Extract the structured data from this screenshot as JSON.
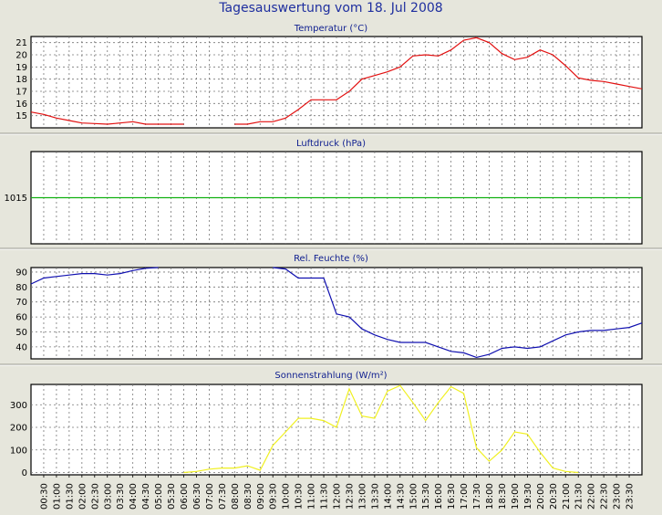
{
  "page": {
    "title": "Tagesauswertung vom 18. Jul 2008"
  },
  "colors": {
    "background": "#e6e6dc",
    "plot_background": "#ffffff",
    "title": "#1f2f9f",
    "temperature": "#e21010",
    "pressure": "#10b010",
    "humidity": "#1010b0",
    "radiation": "#f0f020"
  },
  "chart_data": [
    {
      "type": "line",
      "title": "Temperatur (°C)",
      "ylim": [
        14,
        21.5
      ],
      "yticks": [
        "21",
        "20",
        "19",
        "18",
        "17",
        "16",
        "15"
      ],
      "yticks_values": [
        21,
        20,
        19,
        18,
        17,
        16,
        15
      ],
      "grid": true,
      "x": [
        "00:00",
        "00:30",
        "01:00",
        "01:30",
        "02:00",
        "02:30",
        "03:00",
        "03:30",
        "04:00",
        "04:30",
        "05:00",
        "05:30",
        "06:00",
        "06:30",
        "07:00",
        "07:30",
        "08:00",
        "08:30",
        "09:00",
        "09:30",
        "10:00",
        "10:30",
        "11:00",
        "11:30",
        "12:00",
        "12:30",
        "13:00",
        "13:30",
        "14:00",
        "14:30",
        "15:00",
        "15:30",
        "16:00",
        "16:30",
        "17:00",
        "17:30",
        "18:00",
        "18:30",
        "19:00",
        "19:30",
        "20:00",
        "20:30",
        "21:00",
        "21:30",
        "22:00",
        "22:30",
        "23:00",
        "23:30",
        "24:00"
      ],
      "series": [
        {
          "values": [
            15.3,
            15.1,
            14.8,
            14.6,
            14.4,
            14.35,
            14.3,
            14.4,
            14.5,
            14.3,
            14.3,
            14.3,
            14.3,
            null,
            null,
            null,
            14.3,
            14.3,
            14.5,
            14.5,
            14.8,
            15.5,
            16.3,
            16.3,
            16.3,
            17.0,
            18.0,
            18.3,
            18.6,
            19.0,
            19.9,
            20.0,
            19.9,
            20.4,
            21.2,
            21.4,
            21.0,
            20.1,
            19.6,
            19.8,
            20.4,
            20.0,
            19.1,
            18.1,
            17.9,
            17.8,
            17.6,
            17.4,
            17.2
          ]
        }
      ]
    },
    {
      "type": "line",
      "title": "Luftdruck (hPa)",
      "ylim": [
        1010,
        1020
      ],
      "yticks": [
        "1015"
      ],
      "yticks_values": [
        1015
      ],
      "grid": true,
      "x": [
        "00:00",
        "24:00"
      ],
      "series": [
        {
          "values": [
            1015,
            1015
          ]
        }
      ]
    },
    {
      "type": "line",
      "title": "Rel. Feuchte (%)",
      "ylim": [
        32,
        93
      ],
      "yticks": [
        "90",
        "80",
        "70",
        "60",
        "50",
        "40"
      ],
      "yticks_values": [
        90,
        80,
        70,
        60,
        50,
        40
      ],
      "grid": true,
      "x": [
        "00:00",
        "00:30",
        "01:00",
        "01:30",
        "02:00",
        "02:30",
        "03:00",
        "03:30",
        "04:00",
        "04:30",
        "05:00",
        "05:30",
        "06:00",
        "06:30",
        "07:00",
        "07:30",
        "08:00",
        "08:30",
        "09:00",
        "09:30",
        "10:00",
        "10:30",
        "11:00",
        "11:30",
        "12:00",
        "12:30",
        "13:00",
        "13:30",
        "14:00",
        "14:30",
        "15:00",
        "15:30",
        "16:00",
        "16:30",
        "17:00",
        "17:30",
        "18:00",
        "18:30",
        "19:00",
        "19:30",
        "20:00",
        "20:30",
        "21:00",
        "21:30",
        "22:00",
        "22:30",
        "23:00",
        "23:30",
        "24:00"
      ],
      "series": [
        {
          "values": [
            82,
            86,
            87,
            88,
            89,
            89,
            88,
            89,
            91,
            92.5,
            93,
            null,
            null,
            null,
            null,
            null,
            null,
            null,
            null,
            93,
            92,
            86,
            86,
            86,
            62,
            60,
            52,
            48,
            45,
            43,
            43,
            43,
            40,
            37,
            36,
            33,
            35,
            39,
            40,
            39,
            40,
            44,
            48,
            50,
            51,
            51,
            52,
            53,
            56
          ]
        }
      ]
    },
    {
      "type": "line",
      "title": "Sonnenstrahlung (W/m²)",
      "ylim": [
        -10,
        390
      ],
      "yticks": [
        "300",
        "200",
        "100",
        "0"
      ],
      "yticks_values": [
        300,
        200,
        100,
        0
      ],
      "grid": true,
      "x": [
        "00:00",
        "00:30",
        "01:00",
        "01:30",
        "02:00",
        "02:30",
        "03:00",
        "03:30",
        "04:00",
        "04:30",
        "05:00",
        "05:30",
        "06:00",
        "06:30",
        "07:00",
        "07:30",
        "08:00",
        "08:30",
        "09:00",
        "09:30",
        "10:00",
        "10:30",
        "11:00",
        "11:30",
        "12:00",
        "12:30",
        "13:00",
        "13:30",
        "14:00",
        "14:30",
        "15:00",
        "15:30",
        "16:00",
        "16:30",
        "17:00",
        "17:30",
        "18:00",
        "18:30",
        "19:00",
        "19:30",
        "20:00",
        "20:30",
        "21:00",
        "21:30",
        "22:00",
        "22:30",
        "23:00",
        "23:30",
        "24:00"
      ],
      "series": [
        {
          "values": [
            null,
            null,
            null,
            null,
            null,
            null,
            null,
            null,
            null,
            null,
            null,
            null,
            0,
            5,
            15,
            20,
            20,
            30,
            10,
            120,
            180,
            240,
            240,
            230,
            200,
            370,
            250,
            240,
            360,
            385,
            310,
            230,
            310,
            380,
            350,
            110,
            50,
            100,
            180,
            170,
            90,
            20,
            5,
            0,
            null,
            null,
            null,
            null,
            null
          ]
        }
      ]
    }
  ],
  "x_axis": {
    "labels": [
      "00:30",
      "01:00",
      "01:30",
      "02:00",
      "02:30",
      "03:00",
      "03:30",
      "04:00",
      "04:30",
      "05:00",
      "05:30",
      "06:00",
      "06:30",
      "07:00",
      "07:30",
      "08:00",
      "08:30",
      "09:00",
      "09:30",
      "10:00",
      "10:30",
      "11:00",
      "11:30",
      "12:00",
      "12:30",
      "13:00",
      "13:30",
      "14:00",
      "14:30",
      "15:00",
      "15:30",
      "16:00",
      "16:30",
      "17:00",
      "17:30",
      "18:00",
      "18:30",
      "19:00",
      "19:30",
      "20:00",
      "20:30",
      "21:00",
      "21:30",
      "22:00",
      "22:30",
      "23:00",
      "23:30"
    ]
  }
}
